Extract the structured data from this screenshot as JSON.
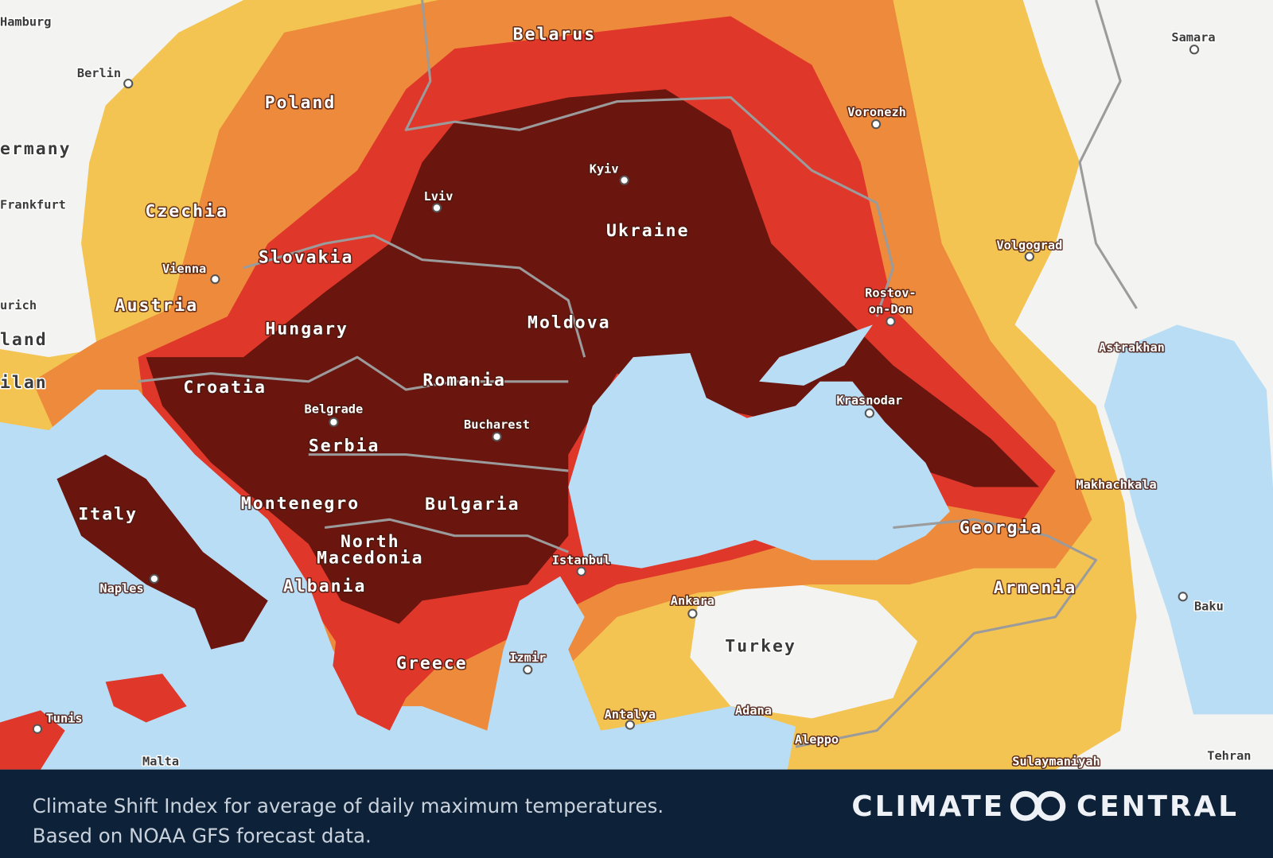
{
  "map": {
    "countries": [
      "Belarus",
      "Poland",
      "ermany",
      "Czechia",
      "Slovakia",
      "Austria",
      "Hungary",
      "Croatia",
      "Serbia",
      "Montenegro",
      "Italy",
      "North",
      "Macedonia",
      "Albania",
      "Greece",
      "Bulgaria",
      "Romania",
      "Moldova",
      "Ukraine",
      "Georgia",
      "Armenia",
      "Turkey",
      "land",
      "ilan"
    ],
    "cities": [
      "Hamburg",
      "Berlin",
      "Frankfurt",
      "Vienna",
      "urich",
      "Lviv",
      "Kyiv",
      "Voronezh",
      "Samara",
      "Volgograd",
      "Rostov-",
      "on-Don",
      "Astrakhan",
      "Krasnodar",
      "Belgrade",
      "Bucharest",
      "Istanbul",
      "Makhachkala",
      "Baku",
      "Naples",
      "Tunis",
      "Malta",
      "Izmir",
      "Ankara",
      "Antalya",
      "Adana",
      "Aleppo",
      "Sulaymaniyah",
      "Tehran"
    ]
  },
  "footer": {
    "caption": [
      "Climate Shift Index for average of daily maximum temperatures.",
      "Based on NOAA GFS forecast data."
    ],
    "logo": [
      "CLIMATE",
      "CENTRAL"
    ]
  }
}
